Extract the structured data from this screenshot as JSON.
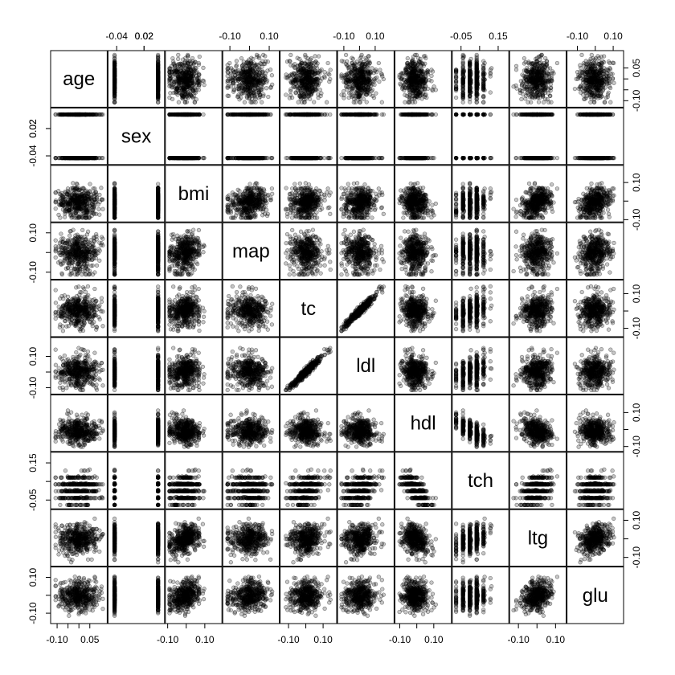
{
  "chart_data": {
    "type": "scatter",
    "kind": "scatterplot-matrix",
    "variables": [
      "age",
      "sex",
      "bmi",
      "map",
      "tc",
      "ldl",
      "hdl",
      "tch",
      "ltg",
      "glu"
    ],
    "axis_ticks": {
      "age": [
        -0.1,
        -0.05,
        0.0,
        0.05
      ],
      "sex": [
        -0.04,
        0.02,
        0.02
      ],
      "bmi": [
        -0.1,
        0.0,
        0.1
      ],
      "map": [
        -0.1,
        0.0,
        0.1
      ],
      "tc": [
        -0.1,
        0.0,
        0.1
      ],
      "ldl": [
        -0.1,
        0.0,
        0.1
      ],
      "hdl": [
        -0.1,
        0.0,
        0.1
      ],
      "tch": [
        -0.05,
        0.05,
        0.15
      ],
      "ltg": [
        -0.1,
        0.0,
        0.1
      ],
      "glu": [
        -0.1,
        0.0,
        0.1
      ]
    },
    "axis_tick_labels": {
      "age": [
        "-0.10",
        "",
        "",
        "0.05"
      ],
      "sex": [
        "-0.04",
        "0.02",
        "0.02"
      ],
      "bmi": [
        "-0.10",
        "",
        "0.10"
      ],
      "map": [
        "-0.10",
        "",
        "0.10"
      ],
      "tc": [
        "-0.10",
        "",
        "0.10"
      ],
      "ldl": [
        "-0.10",
        "",
        "0.10"
      ],
      "hdl": [
        "-0.10",
        "",
        "0.10"
      ],
      "tch": [
        "-0.05",
        "",
        "0.15"
      ],
      "ltg": [
        "-0.10",
        "",
        "0.10"
      ],
      "glu": [
        "-0.10",
        "",
        "0.10"
      ]
    },
    "axis_ranges": {
      "age": [
        -0.115,
        0.115
      ],
      "sex": [
        -0.052,
        0.058
      ],
      "bmi": [
        -0.095,
        0.175
      ],
      "map": [
        -0.12,
        0.135
      ],
      "tc": [
        -0.13,
        0.16
      ],
      "ldl": [
        -0.12,
        0.2
      ],
      "hdl": [
        -0.11,
        0.185
      ],
      "tch": [
        -0.08,
        0.19
      ],
      "ltg": [
        -0.13,
        0.14
      ],
      "glu": [
        -0.14,
        0.14
      ]
    },
    "binary_variables": {
      "sex": [
        -0.0446,
        0.0507
      ]
    },
    "discrete_variables": {
      "tch": [
        -0.0764,
        -0.0395,
        -0.0026,
        0.0343,
        0.0712,
        0.1081
      ]
    },
    "linear_relations": [
      {
        "pair": [
          "tc",
          "ldl"
        ],
        "slope": 1.05,
        "noise": 0.012
      },
      {
        "pair": [
          "hdl",
          "tch"
        ],
        "slope": -0.75,
        "noise": 0.025
      }
    ],
    "n_observations": 442,
    "point_color": "#000000",
    "point_opacity": 0.25,
    "grid": false,
    "legend": false
  }
}
